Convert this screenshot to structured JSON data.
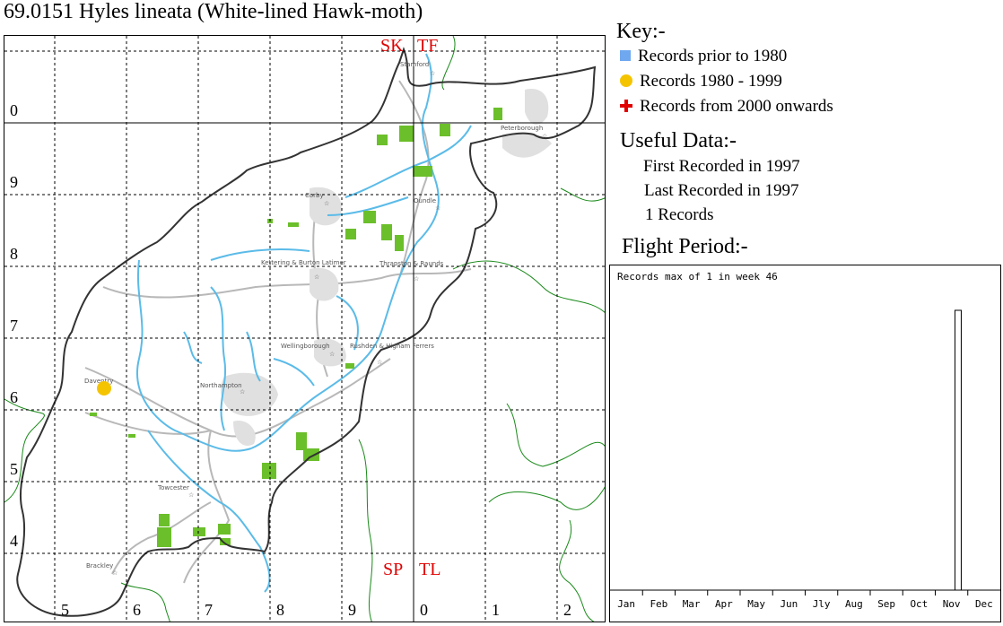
{
  "title": "69.0151 Hyles lineata (White-lined Hawk-moth)",
  "key": {
    "heading": "Key:-",
    "items": [
      {
        "label": "Records prior to 1980",
        "color": "#6fa8ee",
        "icon": "square-icon"
      },
      {
        "label": "Records 1980 - 1999",
        "color": "#f5c400",
        "icon": "circle-icon"
      },
      {
        "label": "Records from 2000 onwards",
        "color": "#e00000",
        "icon": "plus-icon"
      }
    ]
  },
  "useful_data": {
    "heading": "Useful Data:-",
    "first_recorded": "First Recorded in 1997",
    "last_recorded": "Last Recorded in 1997",
    "records": "1 Records"
  },
  "flight_period": {
    "heading": "Flight Period:-",
    "caption": "Records max of 1 in week 46"
  },
  "chart_data": {
    "type": "bar",
    "title": "Records max of 1 in week 46",
    "xlabel": "",
    "ylabel": "",
    "categories": [
      "Jan",
      "Feb",
      "Mar",
      "Apr",
      "May",
      "Jun",
      "Jly",
      "Aug",
      "Sep",
      "Oct",
      "Nov",
      "Dec"
    ],
    "weeks": 52,
    "series": [
      {
        "values": [
          {
            "week": 46,
            "count": 1
          }
        ]
      }
    ],
    "ylim": [
      0,
      1
    ]
  },
  "map": {
    "square_labels": [
      "SK",
      "TF",
      "SP",
      "TL"
    ],
    "easting_labels": [
      "5",
      "6",
      "7",
      "8",
      "9",
      "0",
      "1",
      "2"
    ],
    "northing_labels": [
      "0",
      "9",
      "8",
      "7",
      "6",
      "5",
      "4"
    ],
    "towns": [
      "Stamford",
      "Peterborough",
      "Corby",
      "Oundle",
      "Kettering & Burton Latimer",
      "Thrapston & Raunds",
      "Wellingborough",
      "Rushden & Higham Ferrers",
      "Daventry",
      "Northampton",
      "Towcester",
      "Brackley"
    ],
    "records": [
      {
        "period": "1980 - 1999",
        "place": "Daventry"
      }
    ]
  }
}
